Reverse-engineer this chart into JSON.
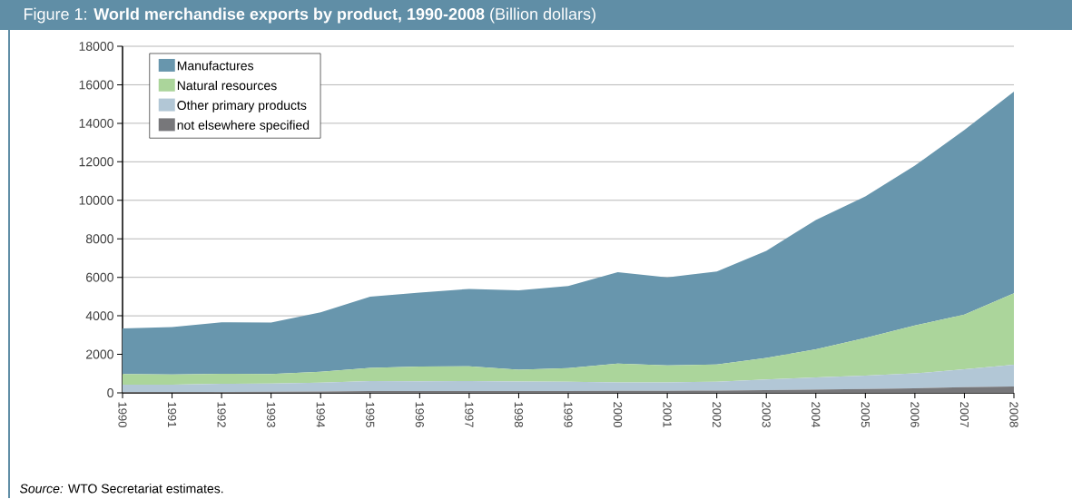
{
  "chart_data": {
    "type": "area",
    "stacked": true,
    "title": "Figure 1: **World merchandise exports by product, 1990-2008** (Billion dollars)",
    "categories": [
      "1990",
      "1991",
      "1992",
      "1993",
      "1994",
      "1995",
      "1996",
      "1997",
      "1998",
      "1999",
      "2000",
      "2001",
      "2002",
      "2003",
      "2004",
      "2005",
      "2006",
      "2007",
      "2008"
    ],
    "series": [
      {
        "name": "not elsewhere specified",
        "color": "#77777a",
        "values": [
          40,
          40,
          50,
          60,
          70,
          90,
          100,
          100,
          100,
          100,
          110,
          110,
          120,
          140,
          170,
          200,
          240,
          290,
          330
        ]
      },
      {
        "name": "Other primary products",
        "color": "#b2c7d6",
        "values": [
          380,
          390,
          420,
          420,
          460,
          520,
          500,
          510,
          490,
          480,
          430,
          430,
          460,
          560,
          630,
          690,
          770,
          930,
          1130
        ]
      },
      {
        "name": "Natural resources",
        "color": "#abd59b",
        "values": [
          560,
          520,
          520,
          500,
          570,
          690,
          770,
          770,
          610,
          700,
          980,
          890,
          890,
          1110,
          1460,
          1960,
          2490,
          2850,
          3710
        ]
      },
      {
        "name": "Manufactures",
        "color": "#6896ad",
        "values": [
          2370,
          2470,
          2670,
          2670,
          3080,
          3700,
          3840,
          4020,
          4120,
          4270,
          4750,
          4570,
          4830,
          5570,
          6720,
          7350,
          8300,
          9580,
          10480
        ]
      }
    ],
    "ylim": [
      0,
      18000
    ],
    "yticks": [
      0,
      2000,
      4000,
      6000,
      8000,
      10000,
      12000,
      14000,
      16000,
      18000
    ],
    "grid": "y",
    "legend": "top left",
    "annotations": [
      "*Source:* WTO Secretariat estimates."
    ]
  }
}
